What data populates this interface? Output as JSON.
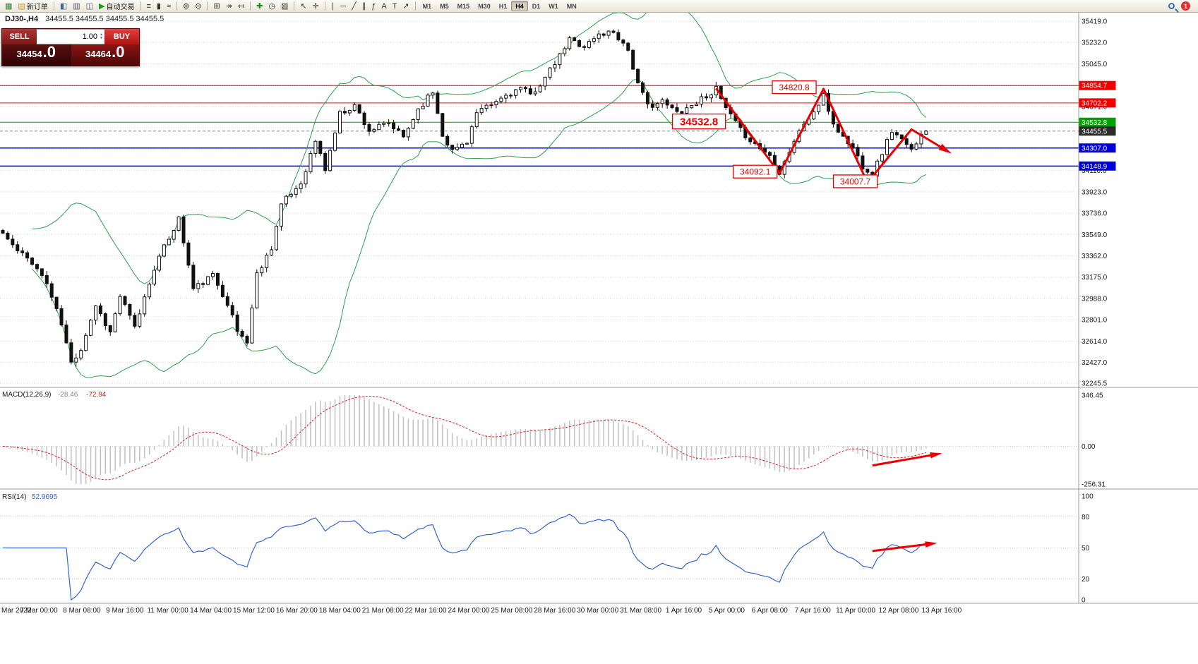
{
  "toolbar": {
    "notification_count": "1",
    "active_timeframe": "H4",
    "timeframes": [
      "M1",
      "M5",
      "M15",
      "M30",
      "H1",
      "H4",
      "D1",
      "W1",
      "MN"
    ],
    "items": [
      {
        "name": "terminal-icon",
        "glyph": "▦",
        "glyph_color": "#2e7d32"
      },
      {
        "name": "new-order-button",
        "glyph": "▤",
        "glyph_color": "#c8971e",
        "label": "新订单"
      },
      {
        "type": "sep"
      },
      {
        "name": "charts-icon",
        "glyph": "◧",
        "glyph_color": "#41618e"
      },
      {
        "name": "print-icon",
        "glyph": "▥",
        "glyph_color": "#556"
      },
      {
        "name": "data-window-icon",
        "glyph": "◫",
        "glyph_color": "#556"
      },
      {
        "name": "autotrading-button",
        "glyph": "▶",
        "glyph_color": "#18a018",
        "label": "自动交易"
      },
      {
        "type": "sep"
      },
      {
        "name": "bar-chart-mode-icon",
        "glyph": "≡",
        "glyph_color": "#333"
      },
      {
        "name": "candle-chart-mode-icon",
        "glyph": "▮",
        "glyph_color": "#333"
      },
      {
        "name": "line-chart-mode-icon",
        "glyph": "≈",
        "glyph_color": "#333"
      },
      {
        "type": "sep"
      },
      {
        "name": "zoom-in-icon",
        "glyph": "⊕",
        "glyph_color": "#333"
      },
      {
        "name": "zoom-out-icon",
        "glyph": "⊖",
        "glyph_color": "#333"
      },
      {
        "type": "sep"
      },
      {
        "name": "tile-windows-icon",
        "glyph": "⊞",
        "glyph_color": "#333"
      },
      {
        "name": "auto-scroll-icon",
        "glyph": "↠",
        "glyph_color": "#333"
      },
      {
        "name": "chart-shift-icon",
        "glyph": "↤",
        "glyph_color": "#333"
      },
      {
        "type": "sep"
      },
      {
        "name": "indicators-icon",
        "glyph": "✚",
        "glyph_color": "#1a8a1a"
      },
      {
        "name": "periods-icon",
        "glyph": "◷",
        "glyph_color": "#333"
      },
      {
        "name": "templates-icon",
        "glyph": "▨",
        "glyph_color": "#333"
      },
      {
        "type": "sep"
      },
      {
        "name": "cursor-icon",
        "glyph": "↖",
        "glyph_color": "#333"
      },
      {
        "name": "crosshair-icon",
        "glyph": "✛",
        "glyph_color": "#333"
      },
      {
        "type": "sep"
      },
      {
        "name": "vertical-line-icon",
        "glyph": "∣",
        "glyph_color": "#333"
      },
      {
        "name": "horizontal-line-icon",
        "glyph": "─",
        "glyph_color": "#333"
      },
      {
        "name": "trendline-icon",
        "glyph": "╱",
        "glyph_color": "#333"
      },
      {
        "name": "channel-icon",
        "glyph": "∥",
        "glyph_color": "#333"
      },
      {
        "name": "fibonacci-icon",
        "glyph": "ƒ",
        "glyph_color": "#333"
      },
      {
        "name": "text-tool-icon",
        "glyph": "A",
        "glyph_color": "#333"
      },
      {
        "name": "label-tool-icon",
        "glyph": "T",
        "glyph_color": "#333"
      },
      {
        "name": "arrows-tool-icon",
        "glyph": "↗",
        "glyph_color": "#333"
      },
      {
        "type": "sep"
      }
    ]
  },
  "chart_header": {
    "symbol": "DJ30-,H4",
    "ohlc": "34455.5 34455.5 34455.5 34455.5"
  },
  "trade_panel": {
    "sell_label": "SELL",
    "buy_label": "BUY",
    "volume": "1.00",
    "spin_up": "▲",
    "spin_down": "▼",
    "sell_price_int": "34454",
    "sell_price_frac": ".0",
    "buy_price_int": "34464",
    "buy_price_frac": ".0"
  },
  "chart_data": [
    {
      "type": "candlestick",
      "title": "DJ30-,H4",
      "ylim": [
        32245.5,
        35419.0
      ],
      "y_ticks": [
        "35419.0",
        "35232.0",
        "35045.0",
        "34858.0",
        "34671.0",
        "34484.0",
        "34297.0",
        "34110.0",
        "33923.0",
        "33736.0",
        "33549.0",
        "33362.0",
        "33175.0",
        "32988.0",
        "32801.0",
        "32614.0",
        "32427.0",
        "32245.5"
      ],
      "levels": [
        {
          "price": 34854.7,
          "label": "34854.7",
          "color": "#f00000"
        },
        {
          "price": 34702.2,
          "label": "34702.2",
          "color": "#f00000"
        },
        {
          "price": 34532.8,
          "label": "34532.8",
          "color": "#00a000"
        },
        {
          "price": 34455.5,
          "label": "34455.5",
          "color": "#2b2b2b",
          "current": true
        },
        {
          "price": 34307.0,
          "label": "34307.0",
          "color": "#0000d8",
          "width": 1.5
        },
        {
          "price": 34148.9,
          "label": "34148.9",
          "color": "#0000d8",
          "width": 1.5
        }
      ],
      "bars_total": 190,
      "noise_seed": 11,
      "last_close": 34455.5,
      "price_path": [
        [
          0,
          33560
        ],
        [
          3,
          33400
        ],
        [
          6,
          33310
        ],
        [
          9,
          33120
        ],
        [
          12,
          32760
        ],
        [
          14,
          32420
        ],
        [
          16,
          32550
        ],
        [
          19,
          32930
        ],
        [
          22,
          32690
        ],
        [
          24,
          33010
        ],
        [
          27,
          32730
        ],
        [
          31,
          33260
        ],
        [
          36,
          33690
        ],
        [
          39,
          33070
        ],
        [
          43,
          33190
        ],
        [
          46,
          32950
        ],
        [
          48,
          32700
        ],
        [
          50,
          32610
        ],
        [
          52,
          33200
        ],
        [
          55,
          33440
        ],
        [
          57,
          33810
        ],
        [
          61,
          34000
        ],
        [
          64,
          34370
        ],
        [
          66,
          34120
        ],
        [
          69,
          34610
        ],
        [
          72,
          34680
        ],
        [
          75,
          34460
        ],
        [
          79,
          34520
        ],
        [
          82,
          34400
        ],
        [
          85,
          34650
        ],
        [
          88,
          34800
        ],
        [
          90,
          34430
        ],
        [
          92,
          34280
        ],
        [
          95,
          34370
        ],
        [
          97,
          34610
        ],
        [
          100,
          34680
        ],
        [
          103,
          34770
        ],
        [
          106,
          34830
        ],
        [
          108,
          34770
        ],
        [
          111,
          34920
        ],
        [
          114,
          35110
        ],
        [
          116,
          35260
        ],
        [
          119,
          35200
        ],
        [
          122,
          35300
        ],
        [
          125,
          35330
        ],
        [
          128,
          35170
        ],
        [
          130,
          34860
        ],
        [
          132,
          34680
        ],
        [
          135,
          34710
        ],
        [
          138,
          34620
        ],
        [
          141,
          34680
        ],
        [
          144,
          34770
        ],
        [
          146,
          34820
        ],
        [
          148,
          34650
        ],
        [
          151,
          34460
        ],
        [
          154,
          34340
        ],
        [
          157,
          34240
        ],
        [
          159,
          34100
        ],
        [
          162,
          34370
        ],
        [
          164,
          34520
        ],
        [
          166,
          34620
        ],
        [
          168,
          34760
        ],
        [
          170,
          34520
        ],
        [
          172,
          34400
        ],
        [
          174,
          34310
        ],
        [
          176,
          34150
        ],
        [
          178,
          34080
        ],
        [
          180,
          34270
        ],
        [
          182,
          34460
        ],
        [
          184,
          34370
        ],
        [
          186,
          34280
        ],
        [
          188,
          34450
        ],
        [
          189,
          34455.5
        ]
      ],
      "bollinger": {
        "period": 20,
        "deviation": 2,
        "color": "#2e9e4f"
      },
      "annotations": {
        "zigzag": [
          [
            146,
            34830
          ],
          [
            159,
            34085
          ],
          [
            168,
            34825
          ],
          [
            177,
            34005
          ],
          [
            186,
            34470
          ],
          [
            193,
            34290
          ]
        ],
        "labels": [
          {
            "text": "34820.8",
            "bar": 162,
            "price": 34840,
            "size": 12
          },
          {
            "text": "34532.8",
            "bar": 142.5,
            "price": 34540,
            "size": 15
          },
          {
            "text": "34092.1",
            "bar": 154,
            "price": 34100,
            "size": 12
          },
          {
            "text": "34007.7",
            "bar": 174.5,
            "price": 34015,
            "size": 12
          }
        ]
      },
      "x_ticks": [
        "Mar 2022",
        "7 Mar 00:00",
        "8 Mar 08:00",
        "9 Mar 16:00",
        "11 Mar 00:00",
        "14 Mar 04:00",
        "15 Mar 12:00",
        "16 Mar 20:00",
        "18 Mar 04:00",
        "21 Mar 08:00",
        "22 Mar 16:00",
        "24 Mar 00:00",
        "25 Mar 08:00",
        "28 Mar 16:00",
        "30 Mar 00:00",
        "31 Mar 08:00",
        "1 Apr 16:00",
        "5 Apr 00:00",
        "6 Apr 08:00",
        "7 Apr 16:00",
        "11 Apr 00:00",
        "12 Apr 08:00",
        "13 Apr 16:00"
      ]
    },
    {
      "type": "macd",
      "name": "MACD(12,26,9)",
      "value_main": "-28.46",
      "value_signal": "-72.94",
      "ylim": [
        -256.31,
        346.45
      ],
      "y_ticks": [
        "346.45",
        "0.00",
        "-256.31"
      ],
      "histogram_color": "#c4c4c4",
      "signal_color": "#e02020",
      "arrow": [
        [
          178,
          -130
        ],
        [
          191,
          -55
        ]
      ]
    },
    {
      "type": "rsi",
      "name": "RSI(14)",
      "value": "52.9695",
      "period": 14,
      "ylim": [
        0,
        100
      ],
      "y_ticks": [
        100,
        80,
        50,
        20,
        0
      ],
      "line_color": "#3366cc",
      "arrow": [
        [
          178,
          47
        ],
        [
          190,
          54
        ]
      ]
    }
  ]
}
